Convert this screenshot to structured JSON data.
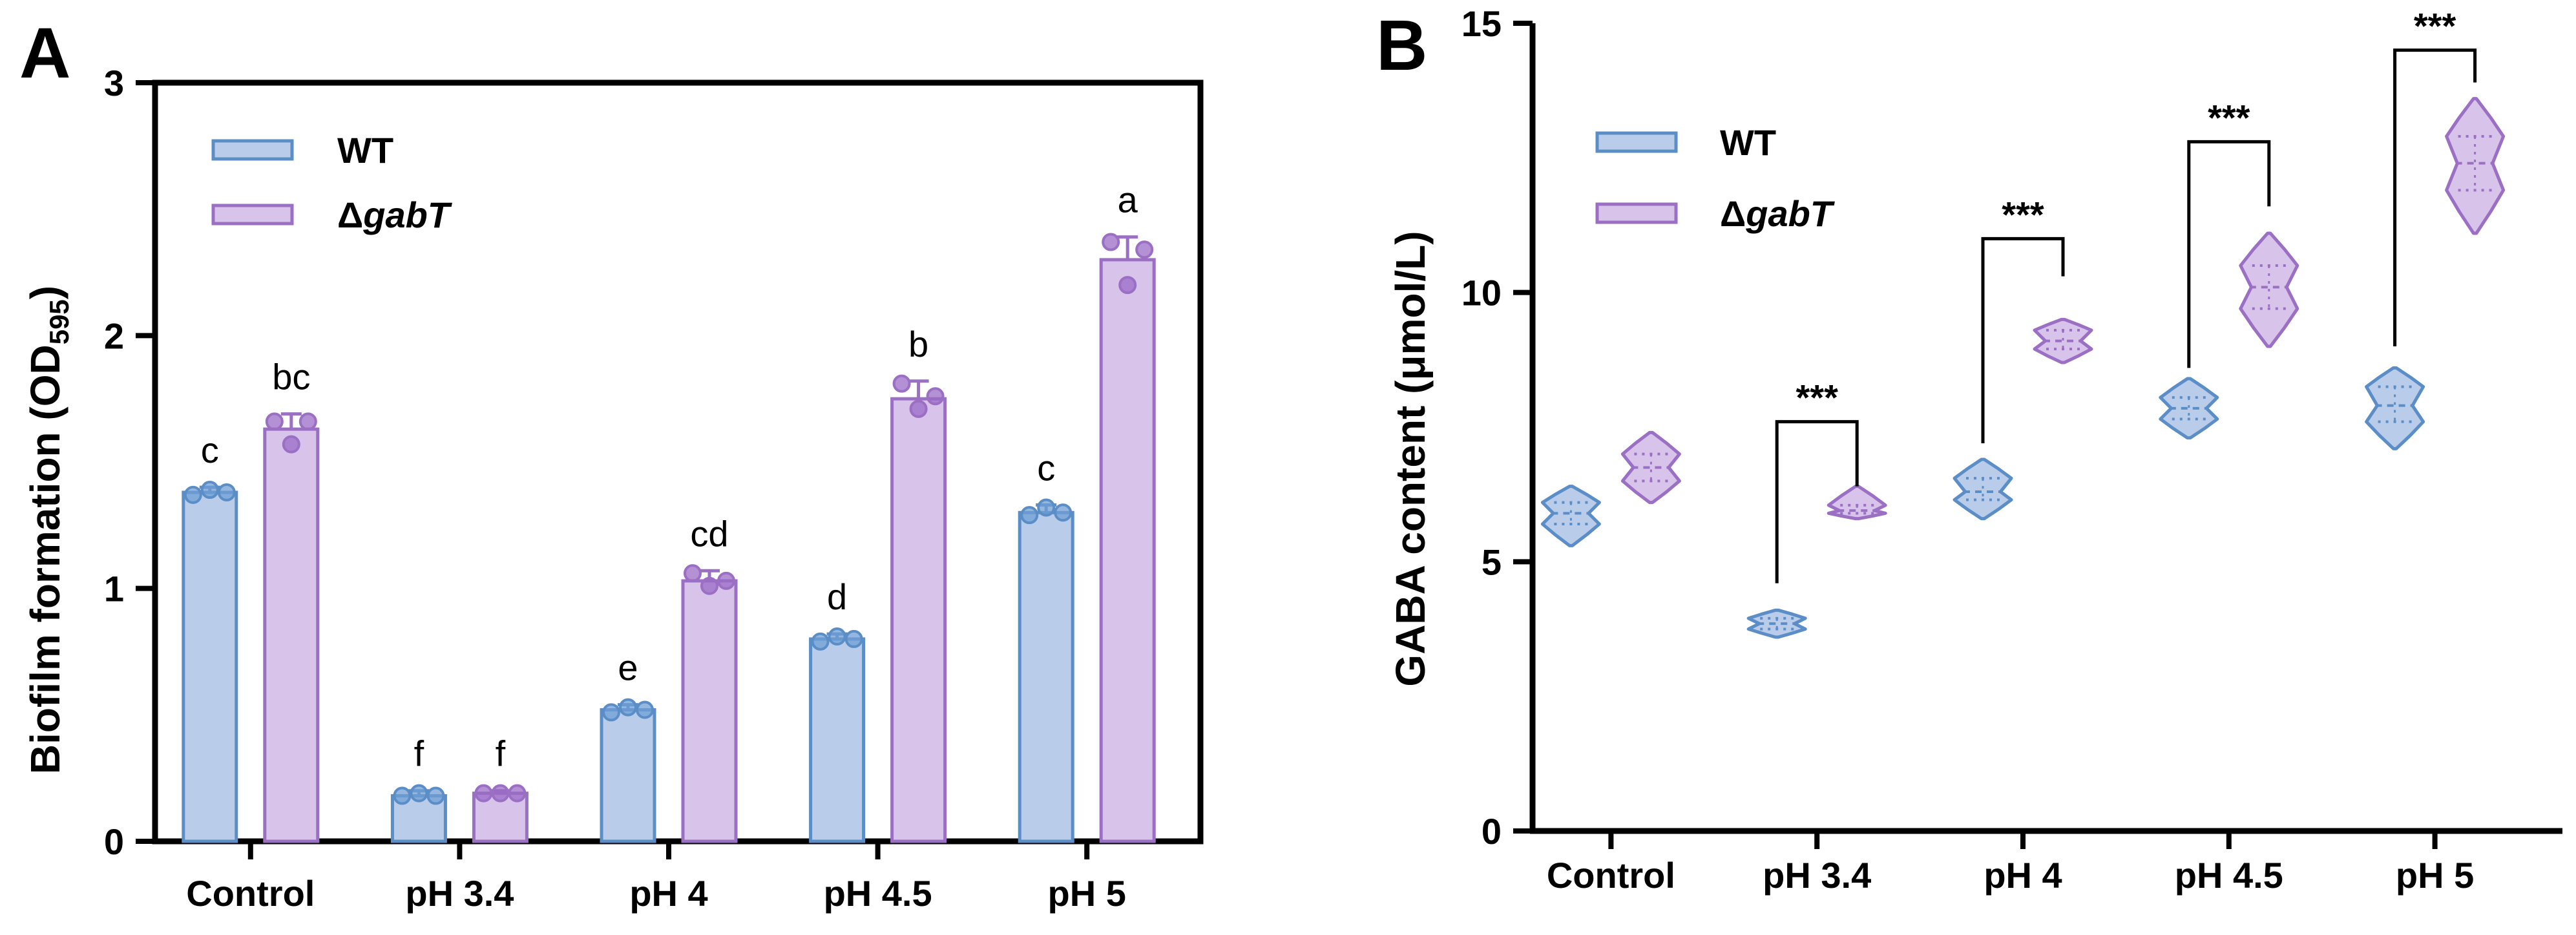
{
  "colors": {
    "wt_fill": "#b9cdea",
    "wt_stroke": "#5b8dc7",
    "gabt_fill": "#d8c4ea",
    "gabt_stroke": "#9a6fc4",
    "gabt_dot": "#9b6bc7",
    "wt_dot": "#6f9fd4"
  },
  "chart_data": [
    {
      "panel": "A",
      "type": "bar",
      "categories": [
        "Control",
        "pH 3.4",
        "pH 4",
        "pH 4.5",
        "pH 5"
      ],
      "ylabel": "Biofilm formation (OD",
      "ylabel_sub": "595",
      "ylabel_close": ")",
      "ylim": [
        0,
        3
      ],
      "yticks": [
        "0",
        "1",
        "2",
        "3"
      ],
      "legend": [
        {
          "name": "WT",
          "italic": ""
        },
        {
          "name": "Δ",
          "italic": "gabT"
        }
      ],
      "series": [
        {
          "name": "WT",
          "values": [
            1.38,
            0.18,
            0.52,
            0.8,
            1.3
          ],
          "errors": [
            0.02,
            0.02,
            0.02,
            0.02,
            0.03
          ],
          "points": [
            [
              1.37,
              1.39,
              1.38
            ],
            [
              0.18,
              0.19,
              0.18
            ],
            [
              0.51,
              0.53,
              0.52
            ],
            [
              0.79,
              0.81,
              0.8
            ],
            [
              1.29,
              1.32,
              1.3
            ]
          ],
          "letters": [
            "c",
            "f",
            "e",
            "d",
            "c"
          ]
        },
        {
          "name": "ΔgabT",
          "values": [
            1.63,
            0.19,
            1.03,
            1.75,
            2.3
          ],
          "errors": [
            0.06,
            0.01,
            0.04,
            0.07,
            0.09
          ],
          "points": [
            [
              1.66,
              1.57,
              1.66
            ],
            [
              0.19,
              0.19,
              0.19
            ],
            [
              1.06,
              1.01,
              1.03
            ],
            [
              1.81,
              1.71,
              1.76
            ],
            [
              2.37,
              2.2,
              2.34
            ]
          ],
          "letters": [
            "bc",
            "f",
            "cd",
            "b",
            "a"
          ]
        }
      ]
    },
    {
      "panel": "B",
      "type": "violin",
      "categories": [
        "Control",
        "pH 3.4",
        "pH 4",
        "pH 4.5",
        "pH 5"
      ],
      "ylabel": "GABA content (μmol/L)",
      "ylim": [
        0,
        15
      ],
      "yticks": [
        "0",
        "5",
        "10",
        "15"
      ],
      "legend": [
        {
          "name": "WT",
          "italic": ""
        },
        {
          "name": "Δ",
          "italic": "gabT"
        }
      ],
      "series": [
        {
          "name": "WT",
          "violins": [
            {
              "min": 5.3,
              "max": 6.4,
              "median": 5.9,
              "q1": 5.7,
              "q3": 6.1,
              "width": 0.45
            },
            {
              "min": 3.6,
              "max": 4.1,
              "median": 3.85,
              "q1": 3.75,
              "q3": 3.95,
              "width": 0.45
            },
            {
              "min": 5.8,
              "max": 6.9,
              "median": 6.3,
              "q1": 6.15,
              "q3": 6.55,
              "width": 0.45
            },
            {
              "min": 7.3,
              "max": 8.4,
              "median": 7.85,
              "q1": 7.65,
              "q3": 8.05,
              "width": 0.45
            },
            {
              "min": 7.1,
              "max": 8.6,
              "median": 7.9,
              "q1": 7.6,
              "q3": 8.25,
              "width": 0.45
            }
          ]
        },
        {
          "name": "ΔgabT",
          "violins": [
            {
              "min": 6.1,
              "max": 7.4,
              "median": 6.75,
              "q1": 6.5,
              "q3": 7.0,
              "width": 0.45
            },
            {
              "min": 5.8,
              "max": 6.4,
              "median": 5.95,
              "q1": 5.9,
              "q3": 6.05,
              "width": 0.45
            },
            {
              "min": 8.7,
              "max": 9.5,
              "median": 9.1,
              "q1": 8.95,
              "q3": 9.3,
              "width": 0.45
            },
            {
              "min": 9.0,
              "max": 11.1,
              "median": 10.1,
              "q1": 9.7,
              "q3": 10.5,
              "width": 0.45
            },
            {
              "min": 11.1,
              "max": 13.6,
              "median": 12.4,
              "q1": 11.9,
              "q3": 12.9,
              "width": 0.45
            }
          ]
        }
      ],
      "significance": [
        {
          "category": "pH 3.4",
          "label": "***",
          "y": 7.6,
          "left_y": 4.6,
          "right_y": 6.4
        },
        {
          "category": "pH 4",
          "label": "***",
          "y": 11.0,
          "left_y": 7.2,
          "right_y": 10.3
        },
        {
          "category": "pH 4.5",
          "label": "***",
          "y": 12.8,
          "left_y": 8.6,
          "right_y": 11.6
        },
        {
          "category": "pH 5",
          "label": "***",
          "y": 14.5,
          "left_y": 9.0,
          "right_y": 13.9
        }
      ]
    }
  ]
}
